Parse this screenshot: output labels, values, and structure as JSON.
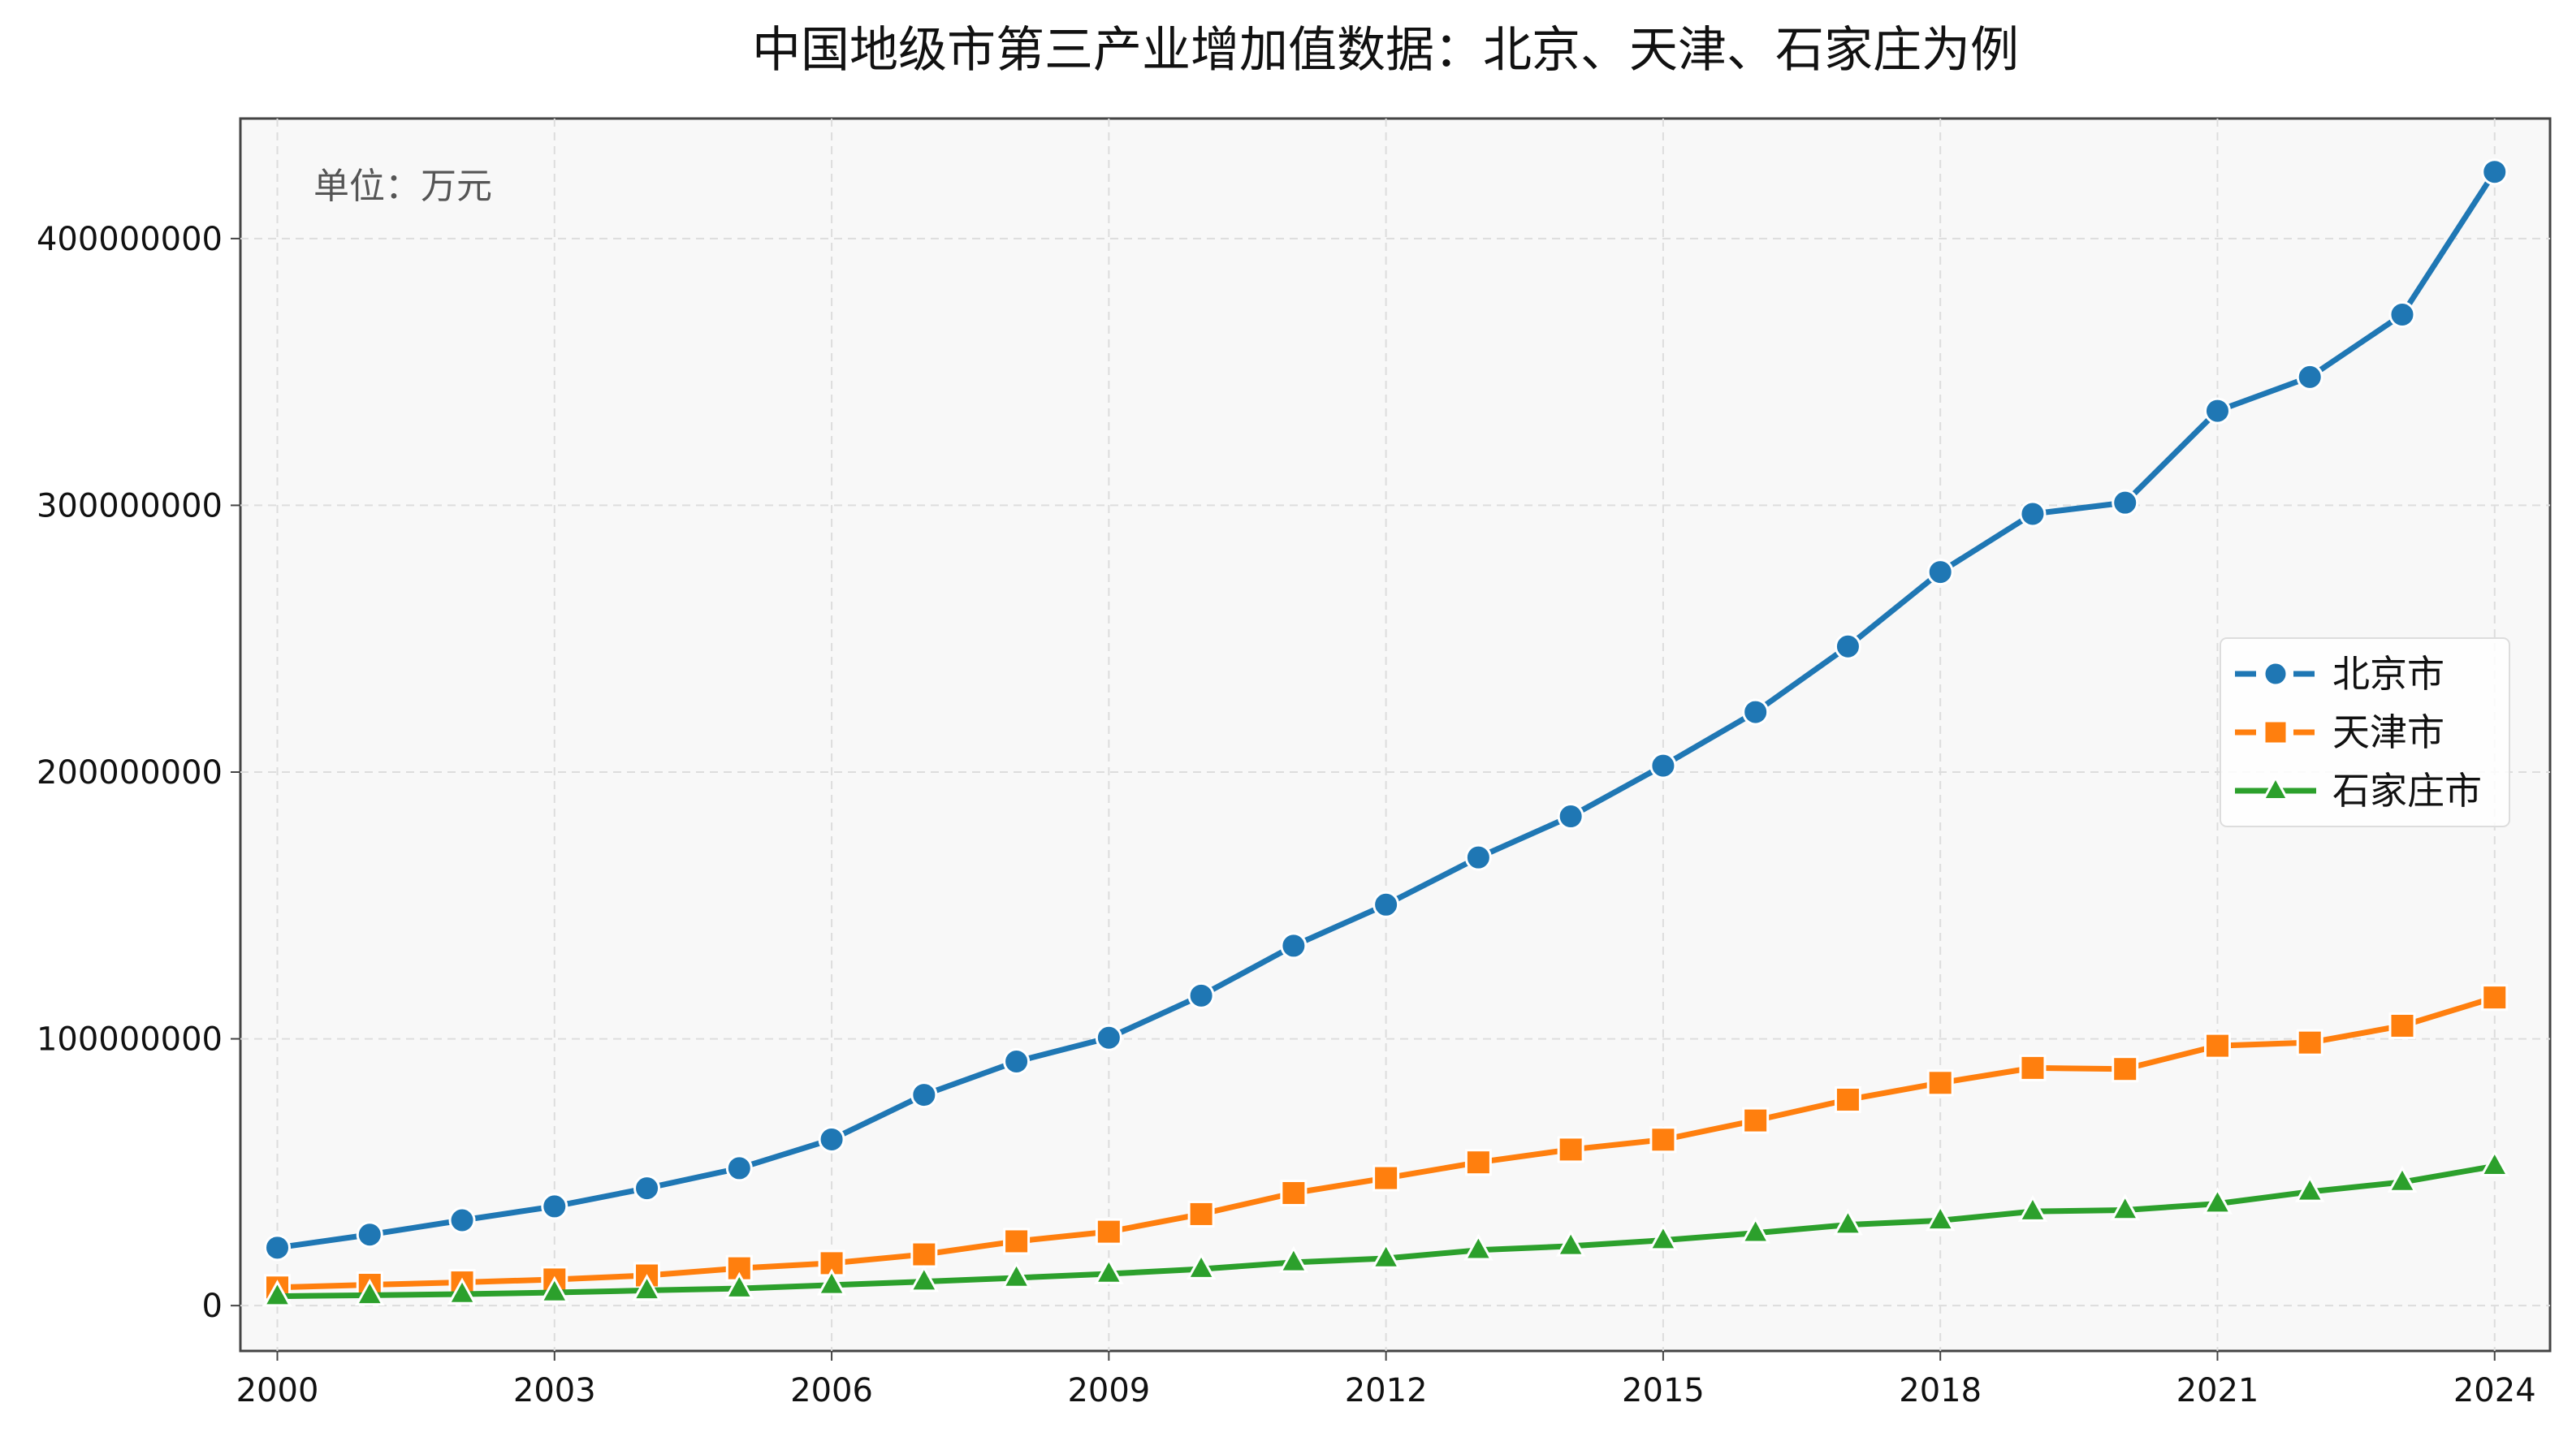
{
  "chart_data": {
    "type": "line",
    "title": "中国地级市第三产业增加值数据：北京、天津、石家庄为例",
    "xlabel": "",
    "ylabel": "",
    "unit_note": "单位：万元",
    "x": [
      2000,
      2001,
      2002,
      2003,
      2004,
      2005,
      2006,
      2007,
      2008,
      2009,
      2010,
      2011,
      2012,
      2013,
      2014,
      2015,
      2016,
      2017,
      2018,
      2019,
      2020,
      2021,
      2022,
      2023,
      2024
    ],
    "x_ticks": [
      "2000",
      "2003",
      "2006",
      "2009",
      "2012",
      "2015",
      "2018",
      "2021",
      "2024"
    ],
    "xlim": [
      1999.6,
      2024.6
    ],
    "y_ticks": [
      "0",
      "100000000",
      "200000000",
      "300000000",
      "400000000"
    ],
    "ylim": [
      -17000000,
      445000000
    ],
    "grid": true,
    "legend_position": "center-right",
    "series": [
      {
        "name": "北京市",
        "color": "#1f77b4",
        "marker": "circle",
        "values": [
          21700000,
          26600000,
          32000000,
          37200000,
          44000000,
          51500000,
          62300000,
          79000000,
          91500000,
          100400000,
          116200000,
          134900000,
          150300000,
          168000000,
          183400000,
          202400000,
          222500000,
          247100000,
          275000000,
          296800000,
          301000000,
          335400000,
          348100000,
          371500000,
          425000000
        ]
      },
      {
        "name": "天津市",
        "color": "#ff7f0e",
        "marker": "square",
        "values": [
          6800000,
          7800000,
          8700000,
          9800000,
          11300000,
          14000000,
          15900000,
          19200000,
          24100000,
          27700000,
          34300000,
          42200000,
          47800000,
          53700000,
          58500000,
          62200000,
          69400000,
          77200000,
          83500000,
          89100000,
          88700000,
          97400000,
          98600000,
          104900000,
          115500000
        ]
      },
      {
        "name": "石家庄市",
        "color": "#2ca02c",
        "marker": "triangle",
        "values": [
          3500000,
          3900000,
          4300000,
          4900000,
          5700000,
          6400000,
          7700000,
          9000000,
          10400000,
          11900000,
          13700000,
          16200000,
          17700000,
          20800000,
          22300000,
          24500000,
          27200000,
          30300000,
          31900000,
          35300000,
          35800000,
          38200000,
          42700000,
          46300000,
          52300000
        ]
      }
    ]
  }
}
